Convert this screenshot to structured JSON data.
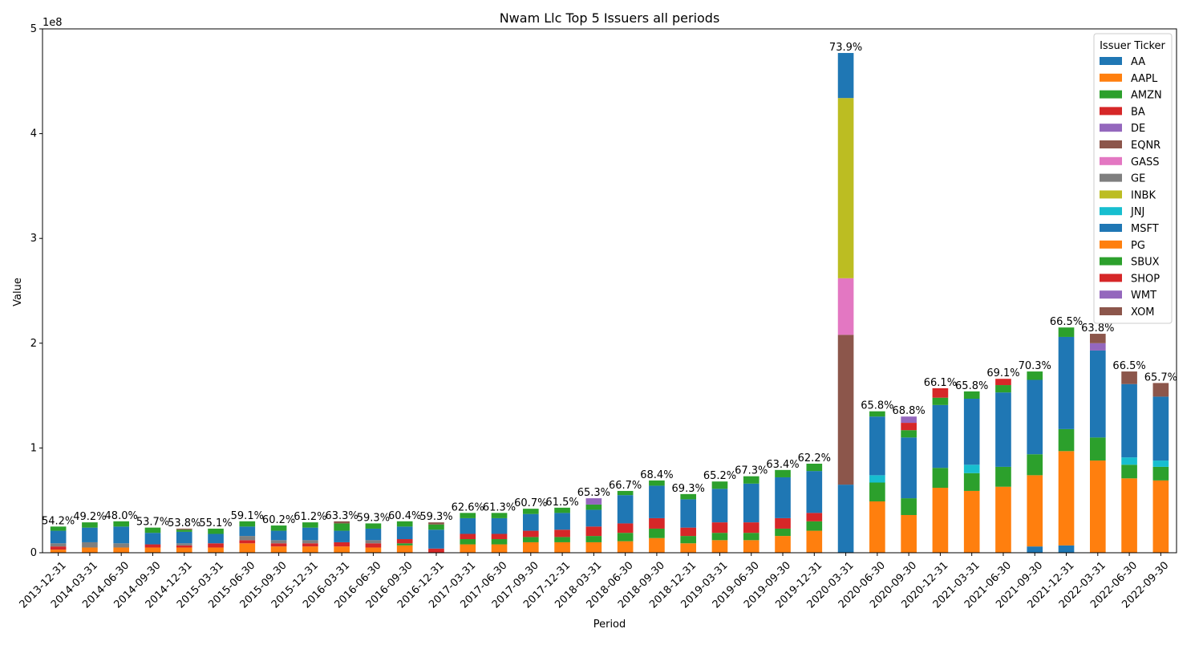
{
  "chart_data": {
    "type": "bar",
    "stacked": true,
    "title": "Nwam Llc Top 5 Issuers all periods",
    "xlabel": "Period",
    "ylabel": "Value",
    "y_exponent_label": "1e8",
    "ylim": [
      0,
      5
    ],
    "yticks": [
      0,
      1,
      2,
      3,
      4,
      5
    ],
    "grid": false,
    "legend_title": "Issuer Ticker",
    "legend_position": "top-right",
    "categories": [
      "2013-12-31",
      "2014-03-31",
      "2014-06-30",
      "2014-09-30",
      "2014-12-31",
      "2015-03-31",
      "2015-06-30",
      "2015-09-30",
      "2015-12-31",
      "2016-03-31",
      "2016-06-30",
      "2016-09-30",
      "2016-12-31",
      "2017-03-31",
      "2017-06-30",
      "2017-09-30",
      "2017-12-31",
      "2018-03-31",
      "2018-06-30",
      "2018-09-30",
      "2018-12-31",
      "2019-03-31",
      "2019-06-30",
      "2019-09-30",
      "2019-12-31",
      "2020-03-31",
      "2020-06-30",
      "2020-09-30",
      "2020-12-31",
      "2021-03-31",
      "2021-06-30",
      "2021-09-30",
      "2021-12-31",
      "2022-03-31",
      "2022-06-30",
      "2022-09-30"
    ],
    "labels": [
      "54.2%",
      "49.2%",
      "48.0%",
      "53.7%",
      "53.8%",
      "55.1%",
      "59.1%",
      "60.2%",
      "61.2%",
      "63.3%",
      "59.3%",
      "60.4%",
      "59.3%",
      "62.6%",
      "61.3%",
      "60.7%",
      "61.5%",
      "65.3%",
      "66.7%",
      "68.4%",
      "69.3%",
      "65.2%",
      "67.3%",
      "63.4%",
      "62.2%",
      "73.9%",
      "65.8%",
      "68.8%",
      "66.1%",
      "65.8%",
      "69.1%",
      "70.3%",
      "66.5%",
      "63.8%",
      "66.5%",
      "65.7%"
    ],
    "series": [
      {
        "name": "AA",
        "color": "#1f77b4",
        "values": [
          0,
          0,
          0,
          0,
          0,
          0,
          0,
          0,
          0,
          0,
          0,
          0,
          0,
          0,
          0,
          0,
          0,
          0,
          0,
          0,
          0,
          0,
          0,
          0,
          0,
          0.65,
          0,
          0,
          0,
          0,
          0,
          0.06,
          0.07,
          0,
          0,
          0
        ]
      },
      {
        "name": "AAPL",
        "color": "#ff7f0e",
        "values": [
          0.03,
          0.05,
          0.05,
          0.05,
          0.05,
          0.05,
          0.09,
          0.06,
          0.06,
          0.06,
          0.05,
          0.07,
          0,
          0.08,
          0.08,
          0.1,
          0.1,
          0.1,
          0.11,
          0.14,
          0.09,
          0.12,
          0.12,
          0.16,
          0.21,
          0,
          0.49,
          0.36,
          0.62,
          0.59,
          0.63,
          0.68,
          0.9,
          0.88,
          0.71,
          0.69
        ]
      },
      {
        "name": "AMZN",
        "color": "#2ca02c",
        "values": [
          0,
          0,
          0,
          0,
          0,
          0,
          0,
          0,
          0,
          0,
          0,
          0.02,
          0,
          0.05,
          0.05,
          0.05,
          0.05,
          0.06,
          0.08,
          0.09,
          0.07,
          0.07,
          0.07,
          0.07,
          0.09,
          0,
          0.18,
          0.16,
          0.19,
          0.17,
          0.19,
          0.2,
          0.21,
          0.22,
          0.13,
          0.13
        ]
      },
      {
        "name": "BA",
        "color": "#d62728",
        "values": [
          0.03,
          0,
          0,
          0.03,
          0.02,
          0.04,
          0.03,
          0.03,
          0.03,
          0.04,
          0.04,
          0.04,
          0.04,
          0.05,
          0.05,
          0.06,
          0.07,
          0.09,
          0.09,
          0.1,
          0.08,
          0.1,
          0.1,
          0.1,
          0.08,
          0,
          0,
          0,
          0,
          0,
          0,
          0,
          0,
          0,
          0,
          0
        ]
      },
      {
        "name": "DE",
        "color": "#9467bd",
        "values": [
          0,
          0,
          0,
          0,
          0,
          0,
          0,
          0,
          0,
          0,
          0,
          0,
          0,
          0,
          0,
          0,
          0,
          0,
          0,
          0,
          0,
          0,
          0,
          0,
          0,
          0,
          0,
          0,
          0,
          0,
          0,
          0,
          0,
          0,
          0,
          0
        ]
      },
      {
        "name": "EQNR",
        "color": "#8c564b",
        "values": [
          0,
          0,
          0,
          0,
          0,
          0,
          0,
          0,
          0,
          0,
          0,
          0,
          0,
          0,
          0,
          0,
          0,
          0,
          0,
          0,
          0,
          0,
          0,
          0,
          0,
          1.43,
          0,
          0,
          0,
          0,
          0,
          0,
          0,
          0,
          0,
          0
        ]
      },
      {
        "name": "GASS",
        "color": "#e377c2",
        "values": [
          0,
          0,
          0,
          0,
          0,
          0,
          0,
          0,
          0,
          0,
          0,
          0,
          0,
          0,
          0,
          0,
          0,
          0,
          0,
          0,
          0,
          0,
          0,
          0,
          0,
          0.54,
          0,
          0,
          0,
          0,
          0,
          0,
          0,
          0,
          0,
          0
        ]
      },
      {
        "name": "GE",
        "color": "#7f7f7f",
        "values": [
          0.03,
          0.05,
          0.04,
          0,
          0.02,
          0,
          0.04,
          0.03,
          0.03,
          0,
          0.03,
          0,
          0,
          0,
          0,
          0,
          0,
          0,
          0,
          0,
          0,
          0,
          0,
          0,
          0,
          0,
          0,
          0,
          0,
          0,
          0,
          0,
          0,
          0,
          0,
          0
        ]
      },
      {
        "name": "INBK",
        "color": "#bcbd22",
        "values": [
          0,
          0,
          0,
          0,
          0,
          0,
          0,
          0,
          0,
          0,
          0,
          0,
          0,
          0,
          0,
          0,
          0,
          0,
          0,
          0,
          0,
          0,
          0,
          0,
          0,
          1.72,
          0,
          0,
          0,
          0,
          0,
          0,
          0,
          0,
          0,
          0
        ]
      },
      {
        "name": "JNJ",
        "color": "#17becf",
        "values": [
          0,
          0,
          0,
          0,
          0,
          0,
          0,
          0,
          0,
          0,
          0,
          0,
          0,
          0,
          0,
          0,
          0,
          0,
          0,
          0,
          0,
          0,
          0,
          0,
          0,
          0,
          0.07,
          0,
          0,
          0.08,
          0,
          0,
          0,
          0,
          0.07,
          0.06
        ]
      },
      {
        "name": "MSFT",
        "color": "#1f77b4",
        "values": [
          0.12,
          0.14,
          0.16,
          0.11,
          0.11,
          0.09,
          0.09,
          0.09,
          0.12,
          0.11,
          0.11,
          0.12,
          0.18,
          0.15,
          0.15,
          0.16,
          0.16,
          0.16,
          0.27,
          0.31,
          0.27,
          0.32,
          0.37,
          0.39,
          0.4,
          0.43,
          0.56,
          0.58,
          0.6,
          0.63,
          0.71,
          0.71,
          0.88,
          0.83,
          0.7,
          0.61
        ]
      },
      {
        "name": "PG",
        "color": "#ff7f0e",
        "values": [
          0,
          0,
          0,
          0,
          0,
          0,
          0,
          0,
          0,
          0,
          0,
          0,
          0,
          0,
          0,
          0,
          0,
          0,
          0,
          0,
          0,
          0,
          0,
          0,
          0,
          0,
          0,
          0,
          0,
          0,
          0,
          0,
          0,
          0,
          0,
          0
        ]
      },
      {
        "name": "SBUX",
        "color": "#2ca02c",
        "values": [
          0.04,
          0.05,
          0.05,
          0.05,
          0.02,
          0.05,
          0.05,
          0.05,
          0.05,
          0.07,
          0.05,
          0.05,
          0.05,
          0.05,
          0.05,
          0.05,
          0.05,
          0.05,
          0.04,
          0.05,
          0.05,
          0.07,
          0.07,
          0.07,
          0.07,
          0,
          0.05,
          0.07,
          0.07,
          0.07,
          0.07,
          0.08,
          0.09,
          0,
          0,
          0
        ]
      },
      {
        "name": "SHOP",
        "color": "#d62728",
        "values": [
          0,
          0,
          0,
          0,
          0,
          0,
          0,
          0,
          0,
          0,
          0,
          0,
          0,
          0,
          0,
          0,
          0,
          0,
          0,
          0,
          0,
          0,
          0,
          0,
          0,
          0,
          0,
          0.07,
          0.09,
          0,
          0.06,
          0,
          0,
          0,
          0,
          0
        ]
      },
      {
        "name": "WMT",
        "color": "#9467bd",
        "values": [
          0,
          0,
          0,
          0,
          0,
          0,
          0,
          0,
          0,
          0,
          0,
          0,
          0,
          0,
          0,
          0,
          0,
          0.06,
          0,
          0,
          0,
          0,
          0,
          0,
          0,
          0,
          0,
          0.06,
          0,
          0,
          0,
          0,
          0,
          0.07,
          0,
          0
        ]
      },
      {
        "name": "XOM",
        "color": "#8c564b",
        "values": [
          0,
          0,
          0,
          0,
          0.01,
          0,
          0,
          0,
          0,
          0.02,
          0,
          0,
          0.02,
          0,
          0,
          0,
          0,
          0,
          0,
          0,
          0,
          0,
          0,
          0,
          0,
          0,
          0,
          0,
          0,
          0,
          0,
          0,
          0,
          0.09,
          0.12,
          0.13
        ]
      }
    ]
  }
}
